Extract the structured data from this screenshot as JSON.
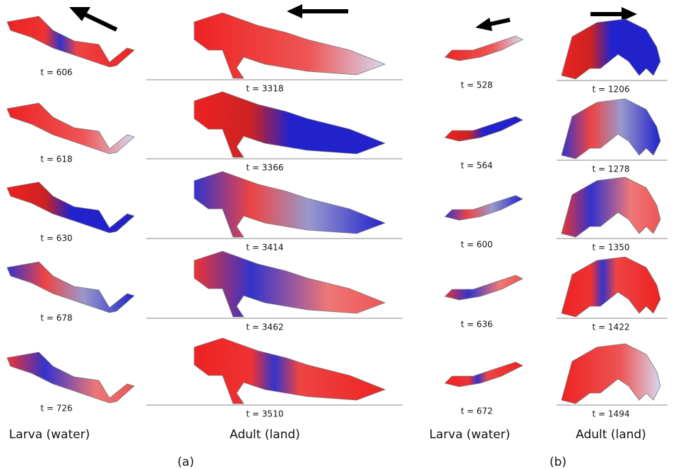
{
  "panels": [
    {
      "label": "(a)",
      "columns": [
        {
          "title": "Larva (water)",
          "frames": [
            "t = 606",
            "t = 618",
            "t = 630",
            "t = 678",
            "t = 726"
          ]
        },
        {
          "title": "Adult (land)",
          "frames": [
            "t = 3318",
            "t = 3366",
            "t = 3414",
            "t = 3462",
            "t = 3510"
          ]
        }
      ]
    },
    {
      "label": "(b)",
      "columns": [
        {
          "title": "Larva (water)",
          "frames": [
            "t = 528",
            "t = 564",
            "t = 600",
            "t = 636",
            "t = 672"
          ]
        },
        {
          "title": "Adult (land)",
          "frames": [
            "t = 1206",
            "t = 1278",
            "t = 1350",
            "t = 1422",
            "t = 1494"
          ]
        }
      ]
    }
  ]
}
